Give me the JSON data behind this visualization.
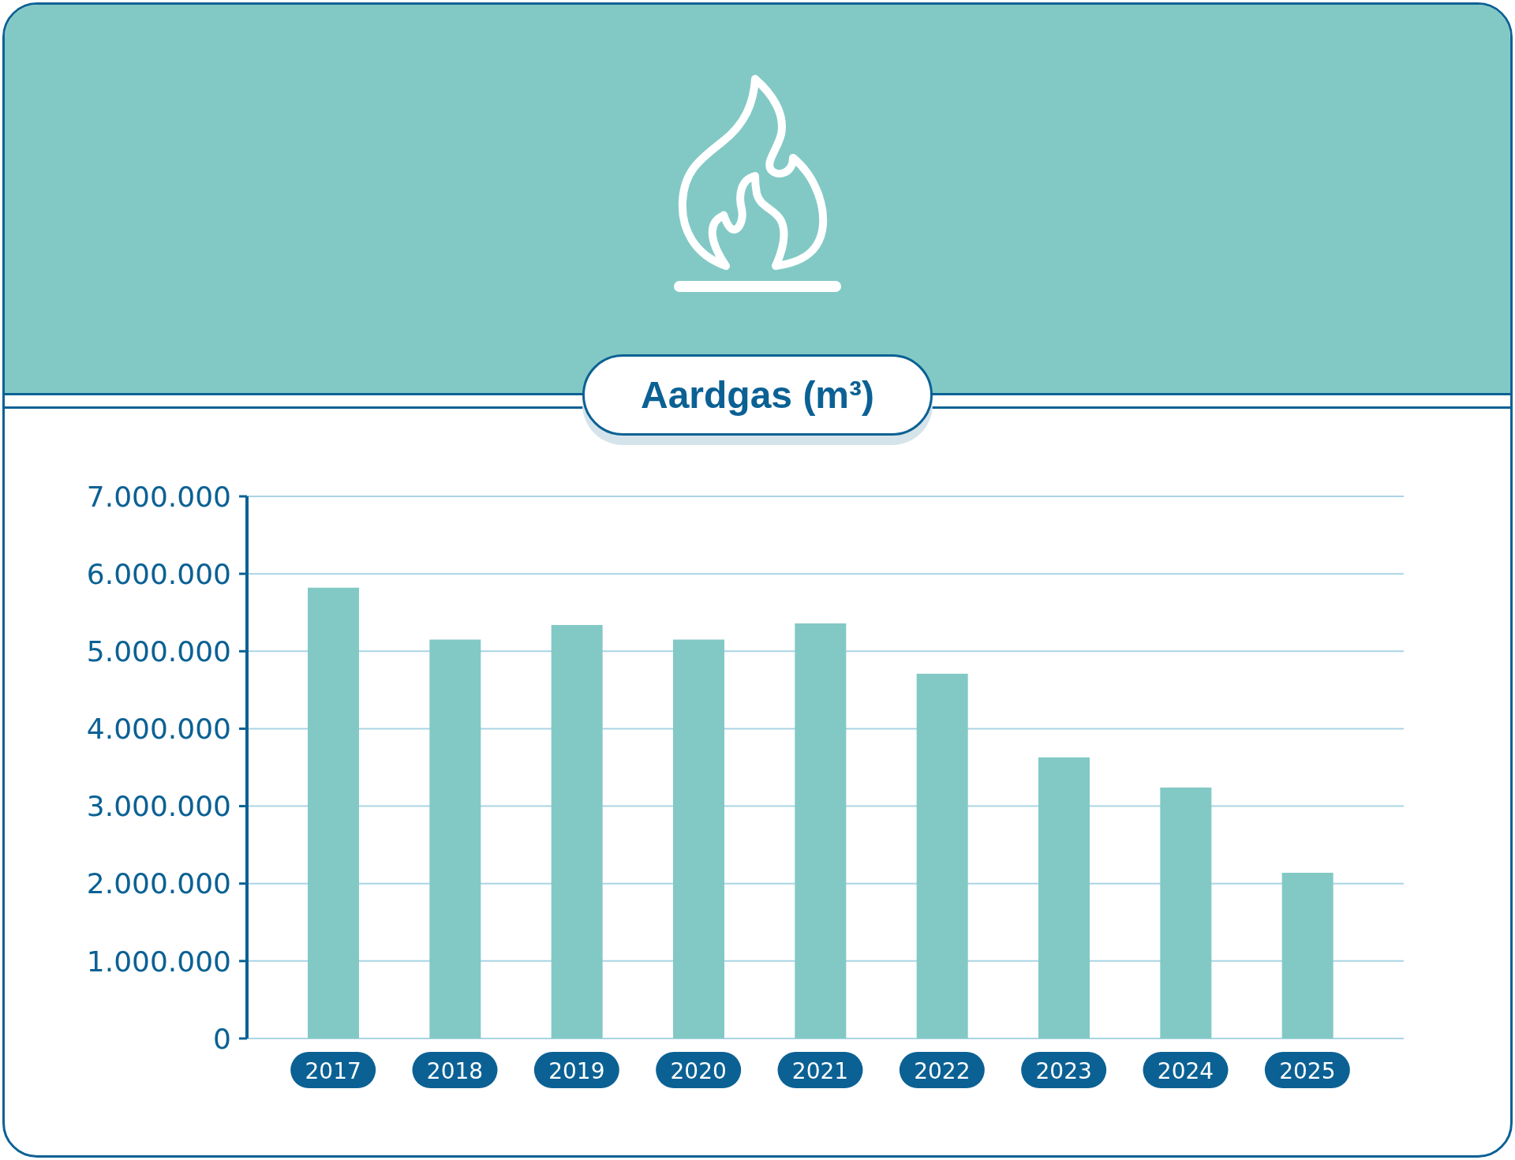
{
  "chart_data": {
    "type": "bar",
    "title": "Aardgas (m³)",
    "categories": [
      "2017",
      "2018",
      "2019",
      "2020",
      "2021",
      "2022",
      "2023",
      "2024",
      "2025"
    ],
    "values": [
      5820000,
      5150000,
      5340000,
      5150000,
      5360000,
      4710000,
      3630000,
      3240000,
      2140000
    ],
    "color": "#82c9c5",
    "ylim": [
      0,
      7000000
    ],
    "yticks": [
      0,
      {
        "value": 1000000,
        "label": "1.000.000"
      },
      {
        "value": 2000000,
        "label": "2.000.000"
      },
      {
        "value": 3000000,
        "label": "3.000.000"
      },
      {
        "value": 4000000,
        "label": "4.000.000"
      },
      {
        "value": 5000000,
        "label": "5.000.000"
      },
      {
        "value": 6000000,
        "label": "6.000.000"
      },
      {
        "value": 7000000,
        "label": "7.000.000"
      }
    ],
    "grid": "y"
  }
}
